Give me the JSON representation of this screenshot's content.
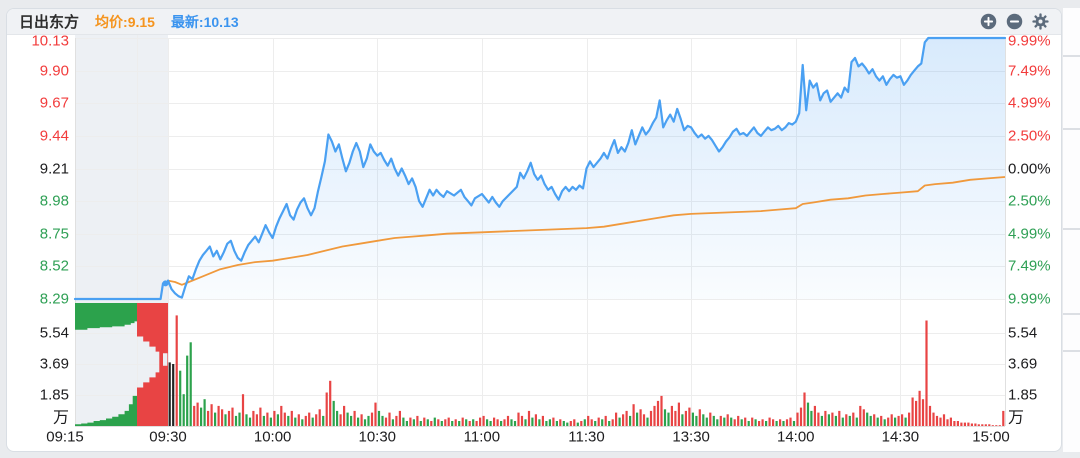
{
  "header": {
    "title": "日出东方",
    "avg_label": "均价:",
    "avg_value": "9.15",
    "latest_label": "最新:",
    "latest_value": "10.13"
  },
  "axes": {
    "price_ticks": [
      {
        "label": "10.13",
        "tone": "up"
      },
      {
        "label": "9.90",
        "tone": "up"
      },
      {
        "label": "9.67",
        "tone": "up"
      },
      {
        "label": "9.44",
        "tone": "up"
      },
      {
        "label": "9.21",
        "tone": "flat"
      },
      {
        "label": "8.98",
        "tone": "down"
      },
      {
        "label": "8.75",
        "tone": "down"
      },
      {
        "label": "8.52",
        "tone": "down"
      },
      {
        "label": "8.29",
        "tone": "down"
      }
    ],
    "pct_ticks": [
      {
        "label": "9.99%",
        "tone": "up"
      },
      {
        "label": "7.49%",
        "tone": "up"
      },
      {
        "label": "4.99%",
        "tone": "up"
      },
      {
        "label": "2.50%",
        "tone": "up"
      },
      {
        "label": "0.00%",
        "tone": "flat"
      },
      {
        "label": "2.50%",
        "tone": "down"
      },
      {
        "label": "4.99%",
        "tone": "down"
      },
      {
        "label": "7.49%",
        "tone": "down"
      },
      {
        "label": "9.99%",
        "tone": "down"
      }
    ],
    "volume_ticks": [
      "5.54",
      "3.69",
      "1.85"
    ],
    "volume_unit": "万",
    "time_ticks": [
      {
        "label": "09:15",
        "t": -15
      },
      {
        "label": "09:30",
        "t": 0
      },
      {
        "label": "10:00",
        "t": 30
      },
      {
        "label": "10:30",
        "t": 60
      },
      {
        "label": "11:00",
        "t": 90
      },
      {
        "label": "11:30",
        "t": 120
      },
      {
        "label": "13:30",
        "t": 150
      },
      {
        "label": "14:00",
        "t": 180
      },
      {
        "label": "14:30",
        "t": 210
      },
      {
        "label": "15:00",
        "t": 240
      }
    ]
  },
  "chart_data": {
    "type": "line+bar intraday time-share (分时图)",
    "prev_close": 9.21,
    "limit_up": 10.13,
    "limit_down": 8.29,
    "latest_price": 10.13,
    "avg_price": 9.15,
    "minutes_total": 240,
    "price_anchors": [
      [
        0,
        8.42
      ],
      [
        1,
        8.36
      ],
      [
        2,
        8.33
      ],
      [
        3,
        8.31
      ],
      [
        4,
        8.3
      ],
      [
        5,
        8.38
      ],
      [
        6,
        8.45
      ],
      [
        7,
        8.43
      ],
      [
        8,
        8.5
      ],
      [
        9,
        8.56
      ],
      [
        10,
        8.6
      ],
      [
        11,
        8.63
      ],
      [
        12,
        8.66
      ],
      [
        13,
        8.59
      ],
      [
        14,
        8.63
      ],
      [
        15,
        8.57
      ],
      [
        16,
        8.62
      ],
      [
        17,
        8.68
      ],
      [
        18,
        8.7
      ],
      [
        19,
        8.63
      ],
      [
        20,
        8.58
      ],
      [
        21,
        8.56
      ],
      [
        22,
        8.62
      ],
      [
        23,
        8.67
      ],
      [
        24,
        8.7
      ],
      [
        25,
        8.73
      ],
      [
        26,
        8.69
      ],
      [
        27,
        8.75
      ],
      [
        28,
        8.81
      ],
      [
        29,
        8.76
      ],
      [
        30,
        8.72
      ],
      [
        31,
        8.8
      ],
      [
        32,
        8.86
      ],
      [
        33,
        8.91
      ],
      [
        34,
        8.96
      ],
      [
        35,
        8.88
      ],
      [
        36,
        8.85
      ],
      [
        37,
        8.92
      ],
      [
        38,
        8.97
      ],
      [
        39,
        9.0
      ],
      [
        40,
        8.93
      ],
      [
        41,
        8.88
      ],
      [
        42,
        8.93
      ],
      [
        43,
        9.05
      ],
      [
        44,
        9.15
      ],
      [
        45,
        9.26
      ],
      [
        46,
        9.45
      ],
      [
        47,
        9.4
      ],
      [
        48,
        9.33
      ],
      [
        49,
        9.38
      ],
      [
        50,
        9.28
      ],
      [
        51,
        9.19
      ],
      [
        52,
        9.25
      ],
      [
        53,
        9.33
      ],
      [
        54,
        9.39
      ],
      [
        55,
        9.33
      ],
      [
        56,
        9.22
      ],
      [
        57,
        9.28
      ],
      [
        58,
        9.38
      ],
      [
        59,
        9.33
      ],
      [
        60,
        9.3
      ],
      [
        61,
        9.32
      ],
      [
        62,
        9.27
      ],
      [
        63,
        9.23
      ],
      [
        64,
        9.28
      ],
      [
        65,
        9.21
      ],
      [
        66,
        9.16
      ],
      [
        67,
        9.21
      ],
      [
        68,
        9.16
      ],
      [
        69,
        9.1
      ],
      [
        70,
        9.14
      ],
      [
        71,
        9.08
      ],
      [
        72,
        8.98
      ],
      [
        73,
        8.94
      ],
      [
        74,
        9.0
      ],
      [
        75,
        9.06
      ],
      [
        76,
        9.02
      ],
      [
        77,
        9.06
      ],
      [
        78,
        9.03
      ],
      [
        79,
        9.01
      ],
      [
        80,
        9.05
      ],
      [
        82,
        9.02
      ],
      [
        84,
        9.06
      ],
      [
        85,
        9.01
      ],
      [
        86,
        8.98
      ],
      [
        87,
        8.95
      ],
      [
        88,
        9.0
      ],
      [
        90,
        9.03
      ],
      [
        91,
        9.0
      ],
      [
        92,
        8.97
      ],
      [
        93,
        9.01
      ],
      [
        94,
        8.97
      ],
      [
        95,
        8.94
      ],
      [
        96,
        8.98
      ],
      [
        98,
        9.03
      ],
      [
        100,
        9.08
      ],
      [
        101,
        9.18
      ],
      [
        102,
        9.14
      ],
      [
        103,
        9.19
      ],
      [
        104,
        9.25
      ],
      [
        105,
        9.17
      ],
      [
        106,
        9.13
      ],
      [
        107,
        9.16
      ],
      [
        108,
        9.1
      ],
      [
        109,
        9.06
      ],
      [
        110,
        9.08
      ],
      [
        111,
        9.03
      ],
      [
        112,
        8.99
      ],
      [
        113,
        9.05
      ],
      [
        114,
        9.08
      ],
      [
        115,
        9.05
      ],
      [
        116,
        9.08
      ],
      [
        117,
        9.06
      ],
      [
        118,
        9.09
      ],
      [
        119,
        9.07
      ],
      [
        120,
        9.21
      ],
      [
        121,
        9.26
      ],
      [
        122,
        9.22
      ],
      [
        123,
        9.25
      ],
      [
        124,
        9.28
      ],
      [
        125,
        9.32
      ],
      [
        126,
        9.28
      ],
      [
        127,
        9.35
      ],
      [
        128,
        9.41
      ],
      [
        129,
        9.32
      ],
      [
        130,
        9.36
      ],
      [
        131,
        9.33
      ],
      [
        132,
        9.39
      ],
      [
        133,
        9.48
      ],
      [
        134,
        9.38
      ],
      [
        135,
        9.44
      ],
      [
        136,
        9.5
      ],
      [
        137,
        9.45
      ],
      [
        138,
        9.48
      ],
      [
        139,
        9.53
      ],
      [
        140,
        9.57
      ],
      [
        141,
        9.69
      ],
      [
        142,
        9.5
      ],
      [
        143,
        9.55
      ],
      [
        144,
        9.59
      ],
      [
        145,
        9.54
      ],
      [
        146,
        9.63
      ],
      [
        147,
        9.56
      ],
      [
        148,
        9.48
      ],
      [
        149,
        9.51
      ],
      [
        150,
        9.5
      ],
      [
        151,
        9.46
      ],
      [
        152,
        9.43
      ],
      [
        153,
        9.45
      ],
      [
        154,
        9.42
      ],
      [
        155,
        9.44
      ],
      [
        156,
        9.41
      ],
      [
        157,
        9.37
      ],
      [
        158,
        9.33
      ],
      [
        159,
        9.36
      ],
      [
        160,
        9.4
      ],
      [
        161,
        9.43
      ],
      [
        162,
        9.47
      ],
      [
        163,
        9.49
      ],
      [
        164,
        9.45
      ],
      [
        165,
        9.46
      ],
      [
        166,
        9.44
      ],
      [
        167,
        9.47
      ],
      [
        168,
        9.5
      ],
      [
        169,
        9.46
      ],
      [
        170,
        9.44
      ],
      [
        171,
        9.47
      ],
      [
        172,
        9.5
      ],
      [
        173,
        9.48
      ],
      [
        174,
        9.49
      ],
      [
        175,
        9.51
      ],
      [
        176,
        9.48
      ],
      [
        177,
        9.5
      ],
      [
        178,
        9.53
      ],
      [
        179,
        9.52
      ],
      [
        180,
        9.54
      ],
      [
        181,
        9.6
      ],
      [
        182,
        9.94
      ],
      [
        183,
        9.62
      ],
      [
        184,
        9.83
      ],
      [
        185,
        9.78
      ],
      [
        186,
        9.81
      ],
      [
        187,
        9.69
      ],
      [
        188,
        9.74
      ],
      [
        189,
        9.76
      ],
      [
        190,
        9.68
      ],
      [
        191,
        9.71
      ],
      [
        192,
        9.74
      ],
      [
        193,
        9.71
      ],
      [
        194,
        9.78
      ],
      [
        195,
        9.75
      ],
      [
        196,
        9.96
      ],
      [
        197,
        9.99
      ],
      [
        198,
        9.93
      ],
      [
        199,
        9.95
      ],
      [
        200,
        9.92
      ],
      [
        201,
        9.88
      ],
      [
        202,
        9.91
      ],
      [
        203,
        9.86
      ],
      [
        204,
        9.83
      ],
      [
        205,
        9.86
      ],
      [
        206,
        9.8
      ],
      [
        207,
        9.84
      ],
      [
        208,
        9.87
      ],
      [
        209,
        9.85
      ],
      [
        210,
        9.86
      ],
      [
        211,
        9.8
      ],
      [
        212,
        9.83
      ],
      [
        213,
        9.87
      ],
      [
        214,
        9.9
      ],
      [
        215,
        9.93
      ],
      [
        216,
        9.95
      ],
      [
        217,
        10.1
      ],
      [
        218,
        10.13
      ],
      [
        240,
        10.13
      ]
    ],
    "avg_anchors": [
      [
        0,
        8.42
      ],
      [
        2,
        8.41
      ],
      [
        4,
        8.39
      ],
      [
        6,
        8.41
      ],
      [
        10,
        8.45
      ],
      [
        15,
        8.5
      ],
      [
        20,
        8.53
      ],
      [
        25,
        8.55
      ],
      [
        30,
        8.56
      ],
      [
        35,
        8.58
      ],
      [
        40,
        8.6
      ],
      [
        45,
        8.63
      ],
      [
        50,
        8.66
      ],
      [
        55,
        8.68
      ],
      [
        60,
        8.7
      ],
      [
        65,
        8.72
      ],
      [
        70,
        8.73
      ],
      [
        75,
        8.74
      ],
      [
        80,
        8.75
      ],
      [
        90,
        8.76
      ],
      [
        100,
        8.77
      ],
      [
        110,
        8.78
      ],
      [
        120,
        8.79
      ],
      [
        125,
        8.8
      ],
      [
        130,
        8.82
      ],
      [
        135,
        8.84
      ],
      [
        140,
        8.86
      ],
      [
        145,
        8.88
      ],
      [
        150,
        8.89
      ],
      [
        160,
        8.9
      ],
      [
        170,
        8.91
      ],
      [
        175,
        8.92
      ],
      [
        180,
        8.93
      ],
      [
        182,
        8.96
      ],
      [
        185,
        8.97
      ],
      [
        190,
        8.99
      ],
      [
        195,
        9.0
      ],
      [
        200,
        9.02
      ],
      [
        205,
        9.03
      ],
      [
        210,
        9.04
      ],
      [
        215,
        9.05
      ],
      [
        217,
        9.09
      ],
      [
        220,
        9.1
      ],
      [
        225,
        9.11
      ],
      [
        230,
        9.13
      ],
      [
        235,
        9.14
      ],
      [
        240,
        9.15
      ]
    ],
    "volumes_wan": [
      [
        3.8,
        3.7,
        6.6,
        3.3,
        1.9,
        4.2,
        5.0,
        1.2,
        1.4,
        1.1
      ],
      [
        1.6,
        0.9,
        1.3,
        0.8,
        1.2,
        1.0,
        0.7,
        0.9,
        1.1,
        0.6
      ],
      [
        0.8,
        1.9,
        0.7,
        0.5,
        0.9,
        0.7,
        1.1,
        0.6,
        0.8,
        0.5
      ],
      [
        0.9,
        0.7,
        1.2,
        0.8,
        0.6,
        0.9,
        0.5,
        0.7,
        0.4,
        0.6
      ],
      [
        0.8,
        0.5,
        0.7,
        1.0,
        0.6,
        2.0,
        2.7,
        1.5,
        0.9,
        0.7
      ],
      [
        1.2,
        0.8,
        0.6,
        0.9,
        0.5,
        0.7,
        0.4,
        0.6,
        0.8,
        1.4
      ],
      [
        0.9,
        0.6,
        0.5,
        0.8,
        0.4,
        0.6,
        0.9,
        0.5,
        0.3,
        0.5
      ],
      [
        0.4,
        0.6,
        0.3,
        0.5,
        0.4,
        0.3,
        0.5,
        0.4,
        0.3,
        0.4
      ],
      [
        0.5,
        0.3,
        0.4,
        0.3,
        0.5,
        0.4,
        0.3,
        0.4,
        0.3,
        0.5
      ],
      [
        0.6,
        0.4,
        0.3,
        0.5,
        0.4,
        0.3,
        0.4,
        0.6,
        0.4,
        0.3
      ],
      [
        0.8,
        0.6,
        0.4,
        0.9,
        0.5,
        0.7,
        0.4,
        0.6,
        0.3,
        0.4
      ],
      [
        0.5,
        0.3,
        0.4,
        0.3,
        0.2,
        0.3,
        0.4,
        0.2,
        0.3,
        0.4
      ],
      [
        0.6,
        0.4,
        0.3,
        0.5,
        0.4,
        0.6,
        0.3,
        0.4,
        0.8,
        0.5
      ],
      [
        0.7,
        0.9,
        0.6,
        1.3,
        0.8,
        1.0,
        0.7,
        0.5,
        0.9,
        1.2
      ],
      [
        1.5,
        1.8,
        1.0,
        0.8,
        1.2,
        0.9,
        1.4,
        0.7,
        0.9,
        1.1
      ],
      [
        0.8,
        0.6,
        1.0,
        0.7,
        0.5,
        0.8,
        0.6,
        0.4,
        0.6,
        0.5
      ],
      [
        0.7,
        0.5,
        0.4,
        0.6,
        0.4,
        0.5,
        0.3,
        0.5,
        0.4,
        0.3
      ],
      [
        0.4,
        0.3,
        0.5,
        0.4,
        0.3,
        0.4,
        0.3,
        0.4,
        0.5,
        0.3
      ],
      [
        0.8,
        1.1,
        2.0,
        1.4,
        0.9,
        1.2,
        0.8,
        0.6,
        0.9,
        0.7
      ],
      [
        0.8,
        0.6,
        0.9,
        0.5,
        0.7,
        0.6,
        0.8,
        0.5,
        1.2,
        1.0
      ],
      [
        0.8,
        0.6,
        0.7,
        0.5,
        0.6,
        0.4,
        0.5,
        0.7,
        0.5,
        0.6
      ],
      [
        0.7,
        0.5,
        0.8,
        1.7,
        1.5,
        2.1,
        1.6,
        6.3,
        1.2,
        0.8
      ],
      [
        0.6,
        0.5,
        0.7,
        0.4,
        0.5,
        0.3,
        0.3,
        0.2,
        0.2,
        0.2
      ],
      [
        0.15,
        0.15,
        0.1,
        0.1,
        0.1,
        0.1,
        0.05,
        0.05,
        0.05,
        0.9
      ]
    ],
    "volume_colors": "kkrggggrrg grrgrrgrrg grggrrrgrg rgrrgrgrgr rgrrgrrggr rggrgrggrr ggrrgrrggr grgrgrgrgr rgrgrgrgrr rggrrgrrgg rrgrgrgrgg rgrggrrgrg rrgrgrgrrg rrgrgrrgrr rrggrrrgrr ggrggrggrg rgrrgrgrgr rgrrgrgrrg rrrggrrgrg rgrgrgrgrr ggrgrgrrgr rgrrrrrrrr rrrrrrrrrr rrrrrrrrrr",
    "auction": {
      "minutes": 15,
      "switch_minute": 10,
      "price_points": [
        [
          0,
          8.29
        ],
        [
          13.8,
          8.29
        ],
        [
          14.2,
          8.4
        ],
        [
          15,
          8.4
        ]
      ],
      "dot": [
        14.6,
        8.4
      ],
      "matched_steps": [
        [
          0,
          0.1
        ],
        [
          1,
          0.15
        ],
        [
          2,
          0.2
        ],
        [
          3,
          0.3
        ],
        [
          4,
          0.35
        ],
        [
          5,
          0.45
        ],
        [
          6,
          0.55
        ],
        [
          7,
          0.7
        ],
        [
          8,
          0.9
        ],
        [
          8.7,
          1.3
        ],
        [
          9.3,
          1.8
        ],
        [
          10,
          2.3
        ],
        [
          11,
          2.6
        ],
        [
          12,
          2.9
        ],
        [
          13,
          3.2
        ],
        [
          14,
          3.6
        ],
        [
          14.9,
          3.8
        ]
      ],
      "unmatched_steps": [
        [
          0,
          1.6
        ],
        [
          2,
          1.5
        ],
        [
          4,
          1.45
        ],
        [
          6,
          1.4
        ],
        [
          8,
          1.3
        ],
        [
          9,
          1.2
        ],
        [
          9.6,
          1.1
        ],
        [
          10,
          2.0
        ],
        [
          11,
          2.3
        ],
        [
          12,
          2.6
        ],
        [
          13,
          2.9
        ],
        [
          13.6,
          4.3
        ],
        [
          14.2,
          3.0
        ],
        [
          14.9,
          4.5
        ]
      ]
    },
    "volume_axis_step_wan": 1.85
  },
  "colors": {
    "up": "#f23c3c",
    "down": "#2fa055",
    "flat": "#1d1d1f",
    "price_line": "#4aa0f2",
    "avg_line": "#f0993c",
    "avg_text": "#f5941e",
    "latest_text": "#3b94ef",
    "fill_top": "rgba(77,160,242,0.22)",
    "fill_bottom": "rgba(77,160,242,0.03)",
    "vol_up": "#e84444",
    "vol_down": "#2ca24c",
    "vol_flat": "#222222",
    "auction_bg": "#edf0f4",
    "grid": "#ededed",
    "axis_border": "#e0e0e0",
    "icon": "#5c6b7c"
  }
}
